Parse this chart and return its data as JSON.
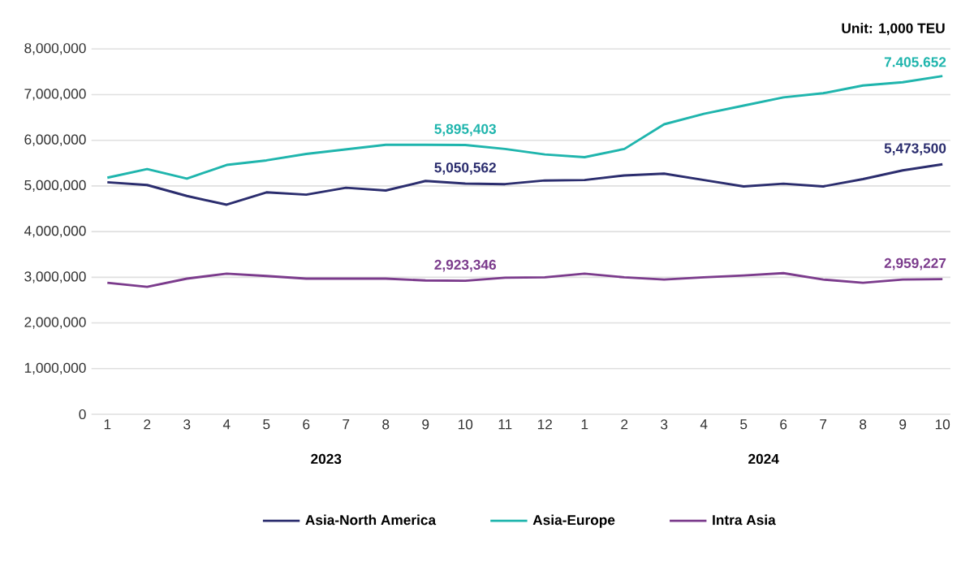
{
  "chart_data": {
    "type": "line",
    "categories": [
      "1",
      "2",
      "3",
      "4",
      "5",
      "6",
      "7",
      "8",
      "9",
      "10",
      "11",
      "12",
      "1",
      "2",
      "3",
      "4",
      "5",
      "6",
      "7",
      "8",
      "9",
      "10"
    ],
    "series": [
      {
        "name": "Asia-North America",
        "color": "#2b2d6e",
        "values": [
          5080000,
          5020000,
          4780000,
          4590000,
          4860000,
          4810000,
          4960000,
          4900000,
          5110000,
          5050562,
          5040000,
          5120000,
          5130000,
          5230000,
          5270000,
          5130000,
          4990000,
          5050000,
          4990000,
          5150000,
          5340000,
          5473500
        ],
        "value_labels": [
          null,
          null,
          null,
          null,
          null,
          null,
          null,
          null,
          null,
          "5,050,562",
          null,
          null,
          null,
          null,
          null,
          null,
          null,
          null,
          null,
          null,
          null,
          "5,473,500"
        ]
      },
      {
        "name": "Asia-Europe",
        "color": "#1fb5ad",
        "values": [
          5180000,
          5370000,
          5160000,
          5460000,
          5560000,
          5700000,
          5800000,
          5900000,
          5900000,
          5895403,
          5810000,
          5690000,
          5630000,
          5810000,
          6350000,
          6580000,
          6760000,
          6940000,
          7030000,
          7200000,
          7270000,
          7405652
        ],
        "value_labels": [
          null,
          null,
          null,
          null,
          null,
          null,
          null,
          null,
          null,
          "5,895,403",
          null,
          null,
          null,
          null,
          null,
          null,
          null,
          null,
          null,
          null,
          null,
          "7.405.652"
        ]
      },
      {
        "name": "Intra Asia",
        "color": "#7b3b8c",
        "values": [
          2880000,
          2790000,
          2970000,
          3080000,
          3030000,
          2970000,
          2970000,
          2970000,
          2930000,
          2923346,
          2990000,
          3000000,
          3080000,
          3000000,
          2950000,
          3000000,
          3040000,
          3090000,
          2950000,
          2880000,
          2950000,
          2959227
        ],
        "value_labels": [
          null,
          null,
          null,
          null,
          null,
          null,
          null,
          null,
          null,
          "2,923,346",
          null,
          null,
          null,
          null,
          null,
          null,
          null,
          null,
          null,
          null,
          null,
          "2,959,227"
        ]
      }
    ],
    "ylim": [
      0,
      8000000
    ],
    "yticks": [
      0,
      {
        "value": 1000000,
        "label": "1,000,000"
      },
      {
        "value": 2000000,
        "label": "2,000,000"
      },
      {
        "value": 3000000,
        "label": "3,000,000"
      },
      {
        "value": 4000000,
        "label": "4,000,000"
      },
      {
        "value": 5000000,
        "label": "5,000,000"
      },
      {
        "value": 6000000,
        "label": "6,000,000"
      },
      {
        "value": 7000000,
        "label": "7,000,000"
      },
      {
        "value": 8000000,
        "label": "8,000,000"
      }
    ],
    "grid": "y",
    "legend": "bottom",
    "marker": "none",
    "line_style": "solid",
    "annotations": [
      "Unit: 1,000 TEU",
      "2023",
      "2024"
    ]
  }
}
